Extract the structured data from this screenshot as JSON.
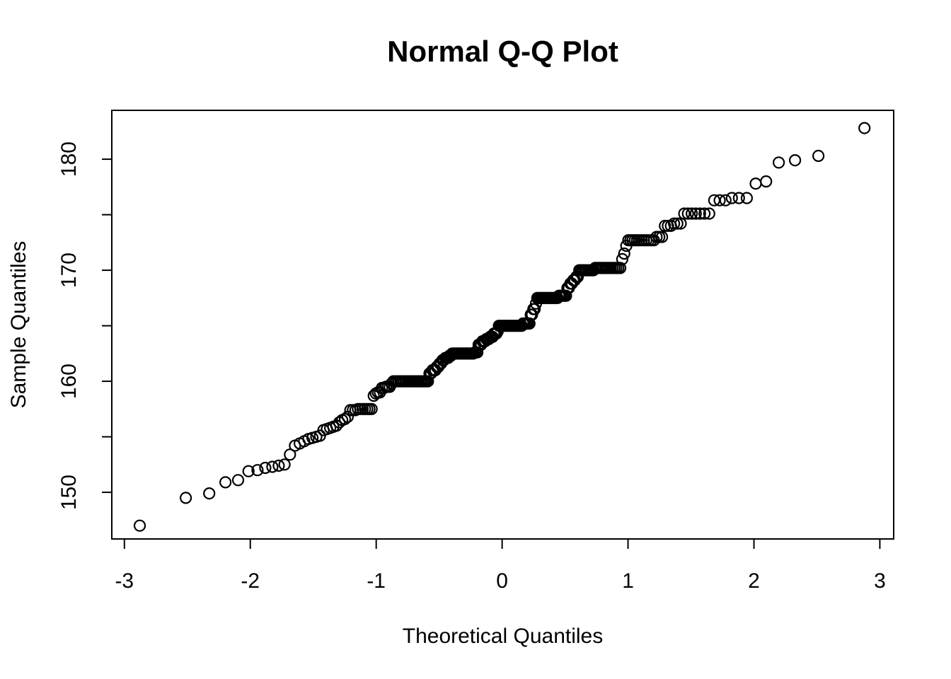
{
  "figure": {
    "background_color": "#ffffff",
    "foreground_color": "#000000"
  },
  "chart_data": {
    "type": "scatter",
    "title": "Normal Q-Q Plot",
    "xlabel": "Theoretical Quantiles",
    "ylabel": "Sample Quantiles",
    "xlim": [
      -3.1,
      3.11
    ],
    "ylim": [
      145.8,
      184.4
    ],
    "grid": "off",
    "x_axis": {
      "ticks": [
        -3,
        -2,
        -1,
        0,
        1,
        2,
        3
      ],
      "labels": [
        "-3",
        "-2",
        "-1",
        "0",
        "1",
        "2",
        "3"
      ]
    },
    "y_axis": {
      "ticks": [
        150,
        155,
        160,
        165,
        170,
        175,
        180
      ],
      "labels": [
        "150",
        "",
        "160",
        "",
        "170",
        "",
        "180"
      ]
    },
    "n_points": 250,
    "theoretical_quantile_rule": "qnorm((i - 0.5) / n) for i = 1..n over sorted sample values",
    "sample_value_counts": [
      [
        147.0,
        1
      ],
      [
        149.5,
        1
      ],
      [
        149.9,
        1
      ],
      [
        150.9,
        1
      ],
      [
        151.1,
        1
      ],
      [
        151.9,
        1
      ],
      [
        152.0,
        1
      ],
      [
        152.2,
        1
      ],
      [
        152.3,
        1
      ],
      [
        152.4,
        1
      ],
      [
        152.5,
        1
      ],
      [
        153.4,
        1
      ],
      [
        154.2,
        1
      ],
      [
        154.4,
        1
      ],
      [
        154.6,
        1
      ],
      [
        154.8,
        1
      ],
      [
        154.9,
        1
      ],
      [
        155.0,
        1
      ],
      [
        155.1,
        1
      ],
      [
        155.6,
        1
      ],
      [
        155.7,
        1
      ],
      [
        155.8,
        1
      ],
      [
        155.9,
        1
      ],
      [
        156.0,
        1
      ],
      [
        156.3,
        1
      ],
      [
        156.5,
        1
      ],
      [
        156.6,
        1
      ],
      [
        156.8,
        1
      ],
      [
        157.4,
        3
      ],
      [
        157.5,
        7
      ],
      [
        158.7,
        1
      ],
      [
        158.9,
        1
      ],
      [
        159.0,
        2
      ],
      [
        159.4,
        2
      ],
      [
        159.5,
        3
      ],
      [
        159.8,
        1
      ],
      [
        160.0,
        22
      ],
      [
        160.7,
        2
      ],
      [
        161.0,
        3
      ],
      [
        161.3,
        2
      ],
      [
        161.6,
        2
      ],
      [
        161.9,
        2
      ],
      [
        162.1,
        3
      ],
      [
        162.3,
        2
      ],
      [
        162.5,
        17
      ],
      [
        162.6,
        3
      ],
      [
        163.3,
        3
      ],
      [
        163.6,
        3
      ],
      [
        163.8,
        3
      ],
      [
        164.0,
        3
      ],
      [
        164.3,
        3
      ],
      [
        164.5,
        1
      ],
      [
        165.0,
        19
      ],
      [
        165.2,
        6
      ],
      [
        166.0,
        2
      ],
      [
        166.5,
        2
      ],
      [
        167.0,
        1
      ],
      [
        167.5,
        16
      ],
      [
        167.7,
        6
      ],
      [
        168.4,
        2
      ],
      [
        168.8,
        2
      ],
      [
        169.1,
        2
      ],
      [
        169.4,
        2
      ],
      [
        170.0,
        10
      ],
      [
        170.2,
        15
      ],
      [
        171.0,
        1
      ],
      [
        171.5,
        1
      ],
      [
        172.2,
        1
      ],
      [
        172.7,
        12
      ],
      [
        173.0,
        3
      ],
      [
        174.0,
        3
      ],
      [
        174.2,
        3
      ],
      [
        175.1,
        7
      ],
      [
        176.3,
        3
      ],
      [
        176.5,
        3
      ],
      [
        177.8,
        1
      ],
      [
        178.0,
        1
      ],
      [
        179.7,
        1
      ],
      [
        179.9,
        1
      ],
      [
        180.3,
        1
      ],
      [
        182.8,
        1
      ]
    ],
    "marker": {
      "shape": "open-circle",
      "radius_px": 7.5,
      "stroke_px": 2.2,
      "color": "#000000"
    }
  }
}
